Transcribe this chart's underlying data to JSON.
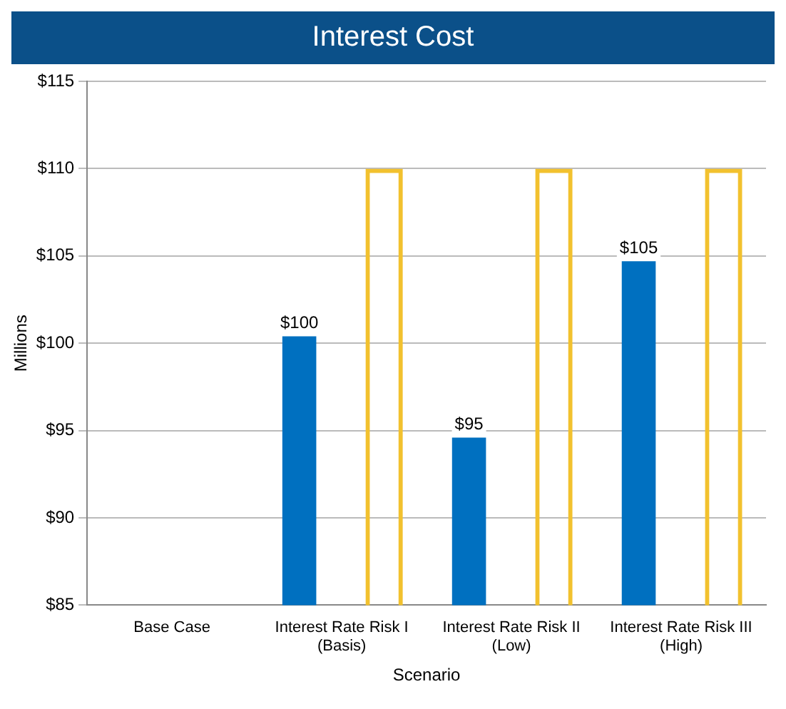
{
  "chart_data": {
    "type": "bar",
    "title": "Interest Cost",
    "xlabel": "Scenario",
    "ylabel": "Millions",
    "categories": [
      "Base Case",
      "Interest Rate Risk I (Basis)",
      "Interest Rate Risk II (Low)",
      "Interest Rate Risk III (High)"
    ],
    "series": [
      {
        "color": "#0070c0",
        "values": [
          null,
          100.4,
          94.6,
          104.7
        ],
        "value_labels": [
          null,
          "$100",
          "$95",
          "$105"
        ]
      },
      {
        "color": "#f2c12e",
        "values": [
          null,
          110,
          110,
          110
        ]
      }
    ],
    "ylim": [
      85,
      115
    ],
    "yticks": [
      {
        "value": 85,
        "label": "$85"
      },
      {
        "value": 90,
        "label": "$90"
      },
      {
        "value": 95,
        "label": "$95"
      },
      {
        "value": 100,
        "label": "$100"
      },
      {
        "value": 105,
        "label": "$105"
      },
      {
        "value": 110,
        "label": "$110"
      },
      {
        "value": 115,
        "label": "$115"
      }
    ],
    "grid": "y",
    "legend": false
  }
}
